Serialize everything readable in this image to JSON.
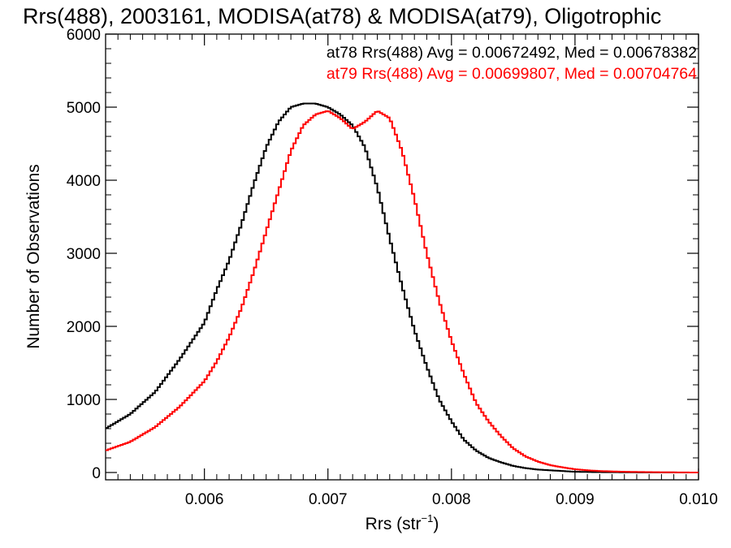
{
  "chart_data": {
    "type": "line",
    "title": "Rrs(488), 2003161, MODISA(at78) & MODISA(at79), Oligotrophic",
    "xlabel_main": "Rrs (str",
    "xlabel_sup": "−1",
    "xlabel_close": ")",
    "ylabel": "Number of Observations",
    "xlim": [
      0.0052,
      0.01
    ],
    "ylim": [
      -100,
      6000
    ],
    "x_ticks": [
      0.006,
      0.007,
      0.008,
      0.009,
      0.01
    ],
    "x_tick_labels": [
      "0.006",
      "0.007",
      "0.008",
      "0.009",
      "0.010"
    ],
    "y_ticks": [
      0,
      1000,
      2000,
      3000,
      4000,
      5000,
      6000
    ],
    "y_tick_labels": [
      "0",
      "1000",
      "2000",
      "3000",
      "4000",
      "5000",
      "6000"
    ],
    "grid": false,
    "legend_position": "top-right",
    "series": [
      {
        "name": "at78",
        "color": "#000000",
        "label": "at78 Rrs(488) Avg = 0.00672492, Med = 0.00678382",
        "x": [
          0.0052,
          0.0054,
          0.0056,
          0.0058,
          0.006,
          0.0061,
          0.0062,
          0.0063,
          0.0064,
          0.0065,
          0.0066,
          0.0067,
          0.0068,
          0.0069,
          0.007,
          0.0071,
          0.0072,
          0.0073,
          0.0074,
          0.0075,
          0.0076,
          0.0077,
          0.0078,
          0.0079,
          0.008,
          0.0081,
          0.0082,
          0.0083,
          0.0084,
          0.0085,
          0.0086,
          0.0087,
          0.0088,
          0.0089,
          0.009,
          0.0092,
          0.0095,
          0.01
        ],
        "y": [
          600,
          800,
          1100,
          1550,
          2050,
          2500,
          2900,
          3400,
          3950,
          4450,
          4800,
          5000,
          5050,
          5050,
          5000,
          4900,
          4750,
          4450,
          3900,
          3200,
          2550,
          1950,
          1450,
          1000,
          700,
          450,
          300,
          200,
          140,
          90,
          60,
          40,
          30,
          20,
          10,
          5,
          2,
          0
        ]
      },
      {
        "name": "at79",
        "color": "#ff0000",
        "label": "at79 Rrs(488) Avg = 0.00699807, Med = 0.00704764",
        "x": [
          0.0052,
          0.0054,
          0.0056,
          0.0058,
          0.006,
          0.0061,
          0.0062,
          0.0063,
          0.0064,
          0.0065,
          0.0066,
          0.0067,
          0.0068,
          0.0069,
          0.007,
          0.0071,
          0.0072,
          0.0073,
          0.0074,
          0.0075,
          0.0076,
          0.0077,
          0.0078,
          0.0079,
          0.008,
          0.0081,
          0.0082,
          0.0083,
          0.0084,
          0.0085,
          0.0086,
          0.0087,
          0.0088,
          0.0089,
          0.009,
          0.0091,
          0.0092,
          0.0094,
          0.0097,
          0.01
        ],
        "y": [
          300,
          420,
          620,
          900,
          1250,
          1520,
          1850,
          2250,
          2750,
          3300,
          3850,
          4400,
          4750,
          4900,
          4950,
          4850,
          4700,
          4800,
          4950,
          4850,
          4400,
          3750,
          3000,
          2350,
          1800,
          1350,
          950,
          700,
          500,
          330,
          220,
          150,
          100,
          70,
          45,
          30,
          20,
          10,
          3,
          0
        ]
      }
    ]
  }
}
